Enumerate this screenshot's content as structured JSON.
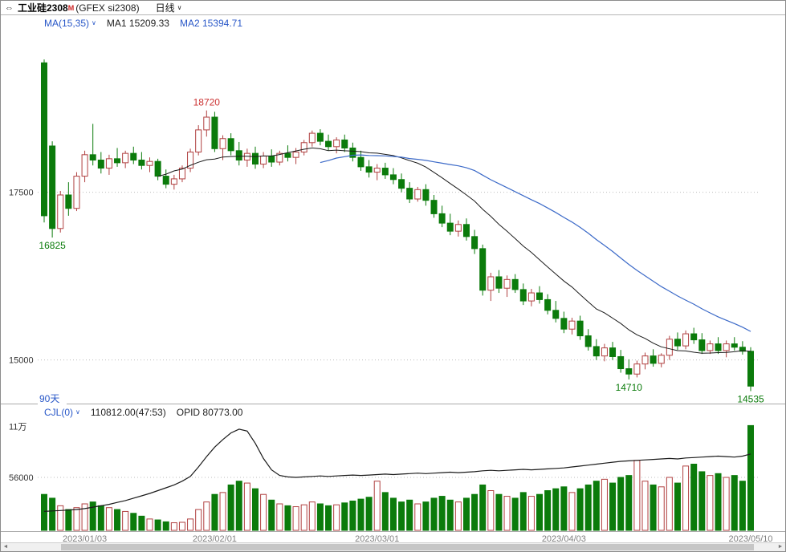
{
  "titlebar": {
    "instrument": "工业硅2308",
    "superscript": "M",
    "exchange": "(GFEX si2308)",
    "period": "日线"
  },
  "main_header": {
    "ma_selector": "MA(15,35)",
    "ma1": "MA1 15209.33",
    "ma2": "MA2 15394.71"
  },
  "sub_header": {
    "indicator": "CJL(0)",
    "volume_reading": "110812.00(47:53)",
    "opid_reading": "OPID 80773.00"
  },
  "range_label": "90天",
  "glyphs": {
    "link_icon": "⇔",
    "caret": "∨",
    "scroll_left": "◄",
    "scroll_right": "►"
  },
  "colors": {
    "up": "#b04040",
    "down": "#0b7b0b",
    "ma1": "#1a1a1a",
    "ma2": "#3c6ac8",
    "oi_line": "#1a1a1a",
    "blue_text": "#2857c8",
    "grid": "#bdbdbd",
    "axis_text": "#333333",
    "date_text": "#808080",
    "annotation_up": "#cc3333",
    "annotation_down": "#0b7b0b"
  },
  "chart_data": {
    "type": "candlestick",
    "title": "工业硅2308 (GFEX si2308) 日线",
    "legend": [
      "MA1(15)",
      "MA2(35)",
      "CJL volume",
      "open interest"
    ],
    "ma_periods": [
      15,
      35
    ],
    "ma1_last": 15209.33,
    "ma2_last": 15394.71,
    "volume_last": 110812.0,
    "open_interest_last": 80773.0,
    "price_axis": {
      "min": 14350,
      "max": 19900,
      "ticks": [
        {
          "label": "17500",
          "value": 17500,
          "line": true
        },
        {
          "label": "15000",
          "value": 15000,
          "line": true
        }
      ]
    },
    "volume_axis": {
      "max": 112000,
      "ticks": [
        {
          "label": "11万",
          "value": 110000,
          "line": false
        },
        {
          "label": "56000",
          "value": 56000,
          "line": true
        }
      ]
    },
    "x_ticks": [
      "2023/01/03",
      "2023/02/01",
      "2023/03/01",
      "2023/04/03",
      "2023/05/10"
    ],
    "annotations": [
      {
        "date": "2022/12/27",
        "text": "16825",
        "placement": "below",
        "color": "down"
      },
      {
        "date": "2023/01/31",
        "text": "18720",
        "placement": "above",
        "color": "up"
      },
      {
        "date": "2023/04/14",
        "text": "14710",
        "placement": "below",
        "color": "down"
      },
      {
        "date": "2023/05/10",
        "text": "14535",
        "placement": "below",
        "color": "down"
      }
    ],
    "dates": [
      "2022/12/26",
      "2022/12/27",
      "2022/12/28",
      "2022/12/29",
      "2022/12/30",
      "2023/01/03",
      "2023/01/04",
      "2023/01/05",
      "2023/01/06",
      "2023/01/09",
      "2023/01/10",
      "2023/01/11",
      "2023/01/12",
      "2023/01/13",
      "2023/01/16",
      "2023/01/17",
      "2023/01/18",
      "2023/01/19",
      "2023/01/20",
      "2023/01/30",
      "2023/01/31",
      "2023/02/01",
      "2023/02/02",
      "2023/02/03",
      "2023/02/06",
      "2023/02/07",
      "2023/02/08",
      "2023/02/09",
      "2023/02/10",
      "2023/02/13",
      "2023/02/14",
      "2023/02/15",
      "2023/02/16",
      "2023/02/17",
      "2023/02/20",
      "2023/02/21",
      "2023/02/22",
      "2023/02/23",
      "2023/02/24",
      "2023/02/27",
      "2023/02/28",
      "2023/03/01",
      "2023/03/02",
      "2023/03/03",
      "2023/03/06",
      "2023/03/07",
      "2023/03/08",
      "2023/03/09",
      "2023/03/10",
      "2023/03/13",
      "2023/03/14",
      "2023/03/15",
      "2023/03/16",
      "2023/03/17",
      "2023/03/20",
      "2023/03/21",
      "2023/03/22",
      "2023/03/23",
      "2023/03/24",
      "2023/03/27",
      "2023/03/28",
      "2023/03/29",
      "2023/03/30",
      "2023/03/31",
      "2023/04/03",
      "2023/04/04",
      "2023/04/06",
      "2023/04/07",
      "2023/04/10",
      "2023/04/11",
      "2023/04/12",
      "2023/04/13",
      "2023/04/14",
      "2023/04/17",
      "2023/04/18",
      "2023/04/19",
      "2023/04/20",
      "2023/04/21",
      "2023/04/24",
      "2023/04/25",
      "2023/04/26",
      "2023/04/27",
      "2023/04/28",
      "2023/05/04",
      "2023/05/05",
      "2023/05/08",
      "2023/05/09",
      "2023/05/10"
    ],
    "open": [
      19430,
      18190,
      16960,
      17460,
      17260,
      17740,
      18060,
      17980,
      17860,
      18000,
      17940,
      18080,
      17980,
      17900,
      17960,
      17740,
      17620,
      17700,
      17860,
      18100,
      18430,
      18620,
      18150,
      18300,
      18120,
      17980,
      18080,
      17920,
      18040,
      17950,
      18080,
      18020,
      18100,
      18240,
      18380,
      18260,
      18180,
      18280,
      18160,
      18020,
      17880,
      17800,
      17860,
      17760,
      17690,
      17560,
      17400,
      17540,
      17380,
      17180,
      17040,
      16920,
      17020,
      16840,
      16660,
      16040,
      16240,
      16070,
      16200,
      16050,
      15880,
      16000,
      15900,
      15740,
      15620,
      15460,
      15580,
      15360,
      15200,
      15060,
      15180,
      15050,
      14870,
      14790,
      14940,
      15060,
      14950,
      15070,
      15310,
      15210,
      15390,
      15300,
      15140,
      15240,
      15140,
      15240,
      15190,
      15130
    ],
    "high": [
      19480,
      18260,
      17520,
      17650,
      17800,
      18120,
      18520,
      18100,
      18060,
      18160,
      18120,
      18180,
      18100,
      18020,
      18000,
      17840,
      17760,
      17900,
      18150,
      18500,
      18720,
      18700,
      18350,
      18380,
      18250,
      18150,
      18180,
      18100,
      18140,
      18120,
      18200,
      18160,
      18280,
      18420,
      18440,
      18360,
      18320,
      18360,
      18240,
      18120,
      17980,
      17920,
      17940,
      17860,
      17780,
      17650,
      17580,
      17620,
      17460,
      17300,
      17180,
      17080,
      17110,
      16940,
      16720,
      16300,
      16340,
      16260,
      16280,
      16140,
      16060,
      16100,
      15980,
      15880,
      15720,
      15630,
      15660,
      15460,
      15310,
      15240,
      15270,
      15150,
      15010,
      14990,
      15110,
      15160,
      15100,
      15360,
      15410,
      15440,
      15480,
      15400,
      15290,
      15340,
      15290,
      15340,
      15280,
      15190
    ],
    "low": [
      17050,
      16825,
      16900,
      17150,
      17220,
      17650,
      17900,
      17780,
      17760,
      17880,
      17860,
      17920,
      17840,
      17800,
      17680,
      17560,
      17540,
      17650,
      17800,
      18050,
      18330,
      18100,
      17980,
      18050,
      17900,
      17880,
      17850,
      17860,
      17880,
      17900,
      17960,
      17920,
      18050,
      18180,
      18200,
      18120,
      18080,
      18100,
      17960,
      17820,
      17720,
      17680,
      17700,
      17620,
      17500,
      17340,
      17360,
      17300,
      17120,
      16980,
      16860,
      16840,
      16780,
      16580,
      15960,
      15880,
      16000,
      15940,
      16000,
      15820,
      15800,
      15840,
      15680,
      15560,
      15400,
      15380,
      15300,
      15140,
      15000,
      14980,
      15000,
      14810,
      14710,
      14740,
      14860,
      14900,
      14890,
      15000,
      15150,
      15160,
      15240,
      15090,
      15090,
      15090,
      15040,
      15140,
      15080,
      14535
    ],
    "close": [
      17150,
      16960,
      17460,
      17260,
      17740,
      18060,
      17980,
      17860,
      18000,
      17940,
      18080,
      17980,
      17900,
      17960,
      17740,
      17620,
      17700,
      17860,
      18100,
      18430,
      18620,
      18150,
      18300,
      18120,
      17980,
      18080,
      17920,
      18040,
      17950,
      18080,
      18020,
      18100,
      18240,
      18380,
      18260,
      18180,
      18280,
      18160,
      18020,
      17880,
      17800,
      17860,
      17760,
      17690,
      17560,
      17400,
      17540,
      17380,
      17180,
      17040,
      16920,
      17020,
      16840,
      16660,
      16040,
      16240,
      16070,
      16200,
      16050,
      15880,
      16000,
      15900,
      15740,
      15620,
      15460,
      15580,
      15360,
      15200,
      15060,
      15180,
      15050,
      14870,
      14790,
      14940,
      15060,
      14950,
      15070,
      15310,
      15210,
      15390,
      15300,
      15140,
      15240,
      15140,
      15240,
      15190,
      15130,
      14610
    ],
    "volume": [
      38000,
      34000,
      26000,
      22000,
      24000,
      28000,
      30000,
      26000,
      24000,
      22000,
      20000,
      18000,
      15000,
      12000,
      11000,
      9000,
      8000,
      8500,
      12000,
      22000,
      30000,
      38000,
      40000,
      48000,
      52000,
      50000,
      44000,
      38000,
      32000,
      28000,
      26000,
      25000,
      27000,
      30000,
      28000,
      26000,
      27000,
      29000,
      31000,
      33000,
      35000,
      52000,
      40000,
      34000,
      30000,
      32000,
      28000,
      30000,
      34000,
      36000,
      32000,
      30000,
      34000,
      38000,
      48000,
      42000,
      38000,
      36000,
      34000,
      40000,
      36000,
      38000,
      42000,
      44000,
      46000,
      40000,
      44000,
      48000,
      52000,
      54000,
      50000,
      56000,
      58000,
      74000,
      52000,
      48000,
      46000,
      56000,
      50000,
      68000,
      70000,
      62000,
      58000,
      60000,
      56000,
      58000,
      52000,
      110812
    ],
    "open_interest": [
      20000,
      20500,
      21000,
      21500,
      22000,
      23000,
      24500,
      26000,
      27500,
      29500,
      31500,
      34000,
      36500,
      39000,
      42000,
      45000,
      48000,
      52000,
      57000,
      67000,
      78000,
      88000,
      96000,
      103000,
      107000,
      105000,
      92000,
      76000,
      64000,
      58000,
      56500,
      56000,
      56500,
      57000,
      57500,
      57000,
      57500,
      58000,
      58500,
      58000,
      58500,
      59000,
      59500,
      59000,
      59500,
      60000,
      60500,
      60000,
      60500,
      61000,
      61500,
      61000,
      61500,
      62000,
      63000,
      63500,
      63000,
      63500,
      64000,
      64500,
      64000,
      64500,
      65000,
      65500,
      66000,
      67000,
      68000,
      69000,
      70000,
      71000,
      72000,
      73000,
      73500,
      74000,
      74500,
      75000,
      75500,
      76000,
      75500,
      76500,
      77000,
      77500,
      78000,
      78500,
      78000,
      77500,
      78500,
      80773
    ]
  }
}
